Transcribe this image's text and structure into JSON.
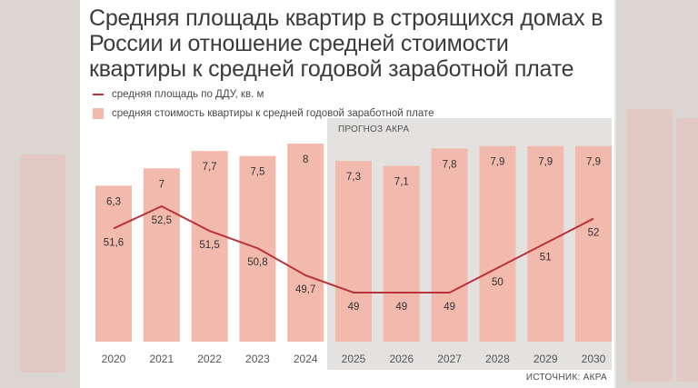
{
  "title": "Средняя площадь квартир в строящихся домах в России и отношение средней стоимости квартиры к средней годовой заработной плате",
  "legend": {
    "line": "средняя площадь по ДДУ, кв. м",
    "bar": "средняя стоимость квартиры к средней годовой заработной плате"
  },
  "forecast_label": "ПРОГНОЗ АКРА",
  "source": "ИСТОЧНИК: АКРА",
  "colors": {
    "bar": "#f2b9ad",
    "line": "#b8333a",
    "forecast_bg": "#e4e2e1"
  },
  "chart_data": {
    "type": "bar",
    "categories": [
      "2020",
      "2021",
      "2022",
      "2023",
      "2024",
      "2025",
      "2026",
      "2027",
      "2028",
      "2029",
      "2030"
    ],
    "series": [
      {
        "type": "bar",
        "name": "средняя стоимость квартиры к средней годовой заработной плате",
        "values": [
          6.3,
          7,
          7.7,
          7.5,
          8,
          7.3,
          7.1,
          7.8,
          7.9,
          7.9,
          7.9
        ],
        "labels": [
          "6,3",
          "7",
          "7,7",
          "7,5",
          "8",
          "7,3",
          "7,1",
          "7,8",
          "7,9",
          "7,9",
          "7,9"
        ]
      },
      {
        "type": "line",
        "name": "средняя площадь по ДДУ, кв. м",
        "values": [
          51.6,
          52.5,
          51.5,
          50.8,
          49.7,
          49,
          49,
          49,
          50,
          51,
          52
        ],
        "labels": [
          "51,6",
          "52,5",
          "51,5",
          "50,8",
          "49,7",
          "49",
          "49",
          "49",
          "50",
          "51",
          "52"
        ]
      }
    ],
    "forecast_start": "2025"
  }
}
